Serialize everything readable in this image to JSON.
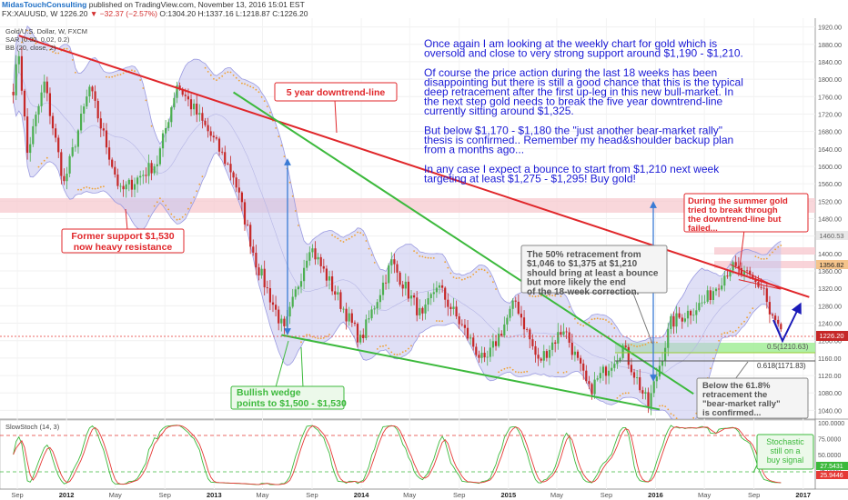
{
  "header": {
    "publisher": "MidasTouchConsulting",
    "published_text": "published on TradingView.com, November 13, 2016 15:01 EST",
    "symbol": "FX:XAUUSD, W",
    "ohlc_text": "1226.20",
    "change_text": "−32.37 (−2.57%)",
    "o_text": "O:1304.20 H:1337.16 L:1218.87 C:1226.20"
  },
  "legend": {
    "title": "Gold/U.S. Dollar, W, FXCM",
    "sar": "SAR (0.02, 0.02, 0.2)",
    "bb": "BB (20, close, 2)",
    "stoch": "SlowStoch (14, 3)"
  },
  "annotations": {
    "commentary": [
      "Once again I am looking at the weekly chart for gold which is",
      "oversold and close to very strong support around $1,190 - $1,210.",
      "",
      "Of course the price action during the last 18 weeks has been",
      "disappointing but there is still a good chance that this is the typical",
      "deep retracement after the first up-leg in this new bull-market. In",
      "the next step gold needs to break the five year downtrend-line",
      "currently sitting around $1,325.",
      "",
      "But below $1,170 - $1,180 the \"just another bear-market rally\"",
      "thesis is confirmed.. Remember my head&shoulder backup plan",
      "from a months ago...",
      "",
      "In any case I expect a bounce to start from $1,210 next week",
      "targeting at least $1,275 - $1,295! Buy gold!"
    ],
    "downtrend_label": "5 year downtrend-line",
    "former_support": [
      "Former support $1,530",
      "now heavy resistance"
    ],
    "wedge": [
      "Bullish wedge",
      "points to $1,500 - $1,530"
    ],
    "retrace50": [
      "The 50% retracement from",
      "$1,046 to $1,375 at $1,210",
      "should bring at least a bounce",
      "but more likely the end",
      "of the 18-week correction."
    ],
    "summer": [
      "During the summer gold",
      "tried to break through",
      "the downtrend-line but",
      "failed..."
    ],
    "retrace618": [
      "Below the 61.8%",
      "retracement the",
      "\"bear-market rally\"",
      "is confirmed..."
    ],
    "stoch_note": [
      "Stochastic",
      "still on a",
      "buy signal"
    ],
    "fib50": "0.5(1210.63)",
    "fib618": "0.618(1171.83)"
  },
  "price_axis": {
    "ticks": [
      "1920.00",
      "1880.00",
      "1840.00",
      "1800.00",
      "1760.00",
      "1720.00",
      "1680.00",
      "1640.00",
      "1600.00",
      "1560.00",
      "1520.00",
      "1480.00",
      "1440.00",
      "1400.00",
      "1360.00",
      "1320.00",
      "1280.00",
      "1240.00",
      "1200.00",
      "1160.00",
      "1120.00",
      "1080.00",
      "1040.00"
    ],
    "last_price": "1226.20",
    "tag1": "1356.82",
    "tag2": "1460.53",
    "tag3": "1280.00"
  },
  "stoch_axis": {
    "ticks": [
      "100.0000",
      "75.0000",
      "50.0000",
      "25.0000"
    ],
    "k": "27.5431",
    "d": "25.9446"
  },
  "time_axis": [
    "Sep",
    "2012",
    "May",
    "Sep",
    "2013",
    "May",
    "Sep",
    "2014",
    "May",
    "Sep",
    "2015",
    "May",
    "Sep",
    "2016",
    "May",
    "Sep",
    "2017"
  ],
  "chart_data": {
    "type": "candlestick",
    "title": "Gold/U.S. Dollar, W, FXCM",
    "ylim": [
      1020,
      1940
    ],
    "x_range": [
      "2011-08",
      "2017-01"
    ],
    "anchors_date_close": [
      [
        "2011-08-22",
        1780
      ],
      [
        "2011-09-05",
        1860
      ],
      [
        "2011-09-26",
        1630
      ],
      [
        "2011-11-07",
        1790
      ],
      [
        "2011-12-26",
        1560
      ],
      [
        "2012-02-27",
        1780
      ],
      [
        "2012-05-14",
        1540
      ],
      [
        "2012-08-13",
        1610
      ],
      [
        "2012-10-01",
        1790
      ],
      [
        "2012-12-31",
        1660
      ],
      [
        "2013-02-18",
        1580
      ],
      [
        "2013-04-15",
        1380
      ],
      [
        "2013-06-24",
        1220
      ],
      [
        "2013-08-26",
        1420
      ],
      [
        "2013-12-30",
        1200
      ],
      [
        "2014-03-17",
        1380
      ],
      [
        "2014-06-02",
        1250
      ],
      [
        "2014-07-07",
        1330
      ],
      [
        "2014-11-03",
        1145
      ],
      [
        "2015-01-19",
        1290
      ],
      [
        "2015-03-16",
        1150
      ],
      [
        "2015-05-18",
        1230
      ],
      [
        "2015-07-20",
        1085
      ],
      [
        "2015-10-12",
        1185
      ],
      [
        "2015-12-14",
        1050
      ],
      [
        "2016-02-08",
        1240
      ],
      [
        "2016-05-02",
        1290
      ],
      [
        "2016-07-04",
        1370
      ],
      [
        "2016-09-26",
        1320
      ],
      [
        "2016-10-10",
        1258
      ],
      [
        "2016-11-07",
        1226
      ]
    ],
    "series": [
      {
        "name": "SAR (0.02, 0.02, 0.2)"
      },
      {
        "name": "BB (20, close, 2)"
      },
      {
        "name": "SlowStoch (14, 3)",
        "ylim": [
          0,
          100
        ],
        "levels": [
          80,
          20
        ]
      }
    ],
    "trendlines": [
      {
        "name": "5 year downtrend-line",
        "color": "#e0262a",
        "points": [
          [
            "2011-09-05",
            1900
          ],
          [
            "2017-01-16",
            1300
          ]
        ]
      },
      {
        "name": "upper wedge",
        "color": "#3cb93c",
        "points": [
          [
            "2013-02-18",
            1770
          ],
          [
            "2016-04-04",
            1078
          ]
        ]
      },
      {
        "name": "lower wedge",
        "color": "#3cb93c",
        "points": [
          [
            "2013-06-17",
            1213
          ],
          [
            "2016-01-11",
            1042
          ]
        ]
      }
    ],
    "levels": [
      {
        "label": "0.5(1210.63)",
        "value": 1210.63
      },
      {
        "label": "0.618(1171.83)",
        "value": 1171.83
      }
    ],
    "last_price": 1226.2
  },
  "colors": {
    "up": "#4caf50",
    "down": "#c62828",
    "trend": "#e0262a",
    "wedge": "#3cb93c",
    "bands": "#b8b8e8",
    "commentary": "#1a1ad6",
    "accent_blue": "#1f6fc5"
  }
}
